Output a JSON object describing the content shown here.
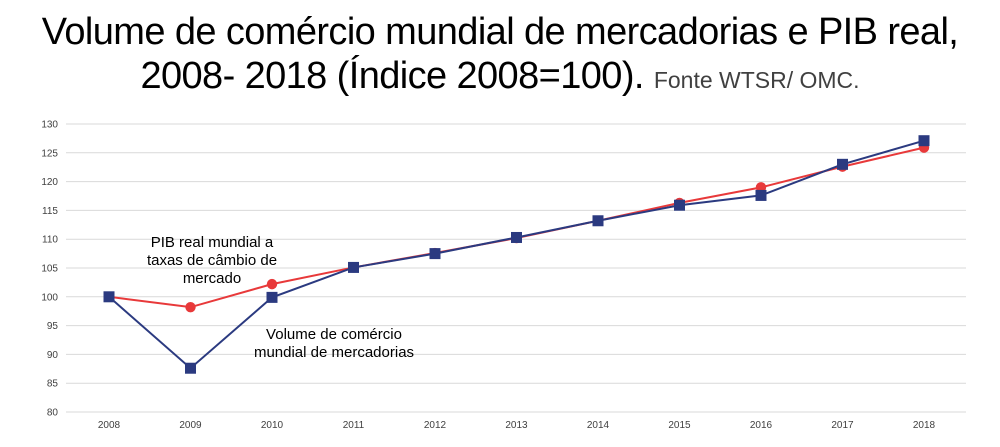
{
  "title_line1": "Volume de comércio mundial de mercadorias e PIB real,",
  "title_line2": "2008- 2018 (Índice 2008=100).",
  "source": "Fonte WTSR/ OMC.",
  "colors": {
    "gdp": "#e8393a",
    "trade": "#2b3a80",
    "grid": "#d9d9d9",
    "tick_text": "#404040"
  },
  "chart_data": {
    "type": "line",
    "title": "Volume de comércio mundial de mercadorias e PIB real, 2008- 2018 (Índice 2008=100).",
    "x": [
      "2008",
      "2009",
      "2010",
      "2011",
      "2012",
      "2013",
      "2014",
      "2015",
      "2016",
      "2017",
      "2018"
    ],
    "ylim": [
      80,
      130
    ],
    "yticks": [
      80,
      85,
      90,
      95,
      100,
      105,
      110,
      115,
      120,
      125,
      130
    ],
    "grid": true,
    "series": [
      {
        "name": "PIB real mundial a taxas de câmbio de mercado",
        "marker": "circle",
        "color": "#e8393a",
        "values": [
          100,
          98.2,
          102.2,
          105.1,
          107.6,
          110.2,
          113.2,
          116.3,
          119.0,
          122.6,
          125.9
        ]
      },
      {
        "name": "Volume de comércio mundial de mercadorias",
        "marker": "square",
        "color": "#2b3a80",
        "values": [
          100,
          87.6,
          99.9,
          105.1,
          107.5,
          110.3,
          113.2,
          115.9,
          117.6,
          123.0,
          127.1
        ]
      }
    ],
    "annotations": [
      {
        "series": 0,
        "lines": [
          "PIB real mundial a",
          "taxas de câmbio de",
          "mercado"
        ]
      },
      {
        "series": 1,
        "lines": [
          "Volume de comércio",
          "mundial de mercadorias"
        ]
      }
    ]
  }
}
